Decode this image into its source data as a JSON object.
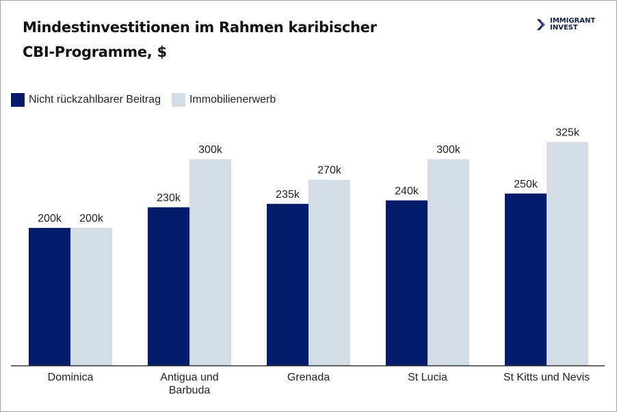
{
  "title_lines": [
    "Mindestinvestitionen im Rahmen karibischer",
    "CBI-Programme, $"
  ],
  "logo": {
    "line1": "IMMIGRANT",
    "line2": "INVEST",
    "icon": "chevron-double-right-icon"
  },
  "colors": {
    "series1": "#031b6b",
    "series2": "#d3dde5",
    "axis": "#333333"
  },
  "chart_data": {
    "type": "bar",
    "title": "Mindestinvestitionen im Rahmen karibischer CBI-Programme, $",
    "xlabel": "",
    "ylabel": "",
    "categories": [
      "Dominica",
      "Antigua und Barbuda",
      "Grenada",
      "St Lucia",
      "St Kitts und Nevis"
    ],
    "category_label_lines": [
      [
        "Dominica"
      ],
      [
        "Antigua und",
        "Barbuda"
      ],
      [
        "Grenada"
      ],
      [
        "St Lucia"
      ],
      [
        "St Kitts und Nevis"
      ]
    ],
    "series": [
      {
        "name": "Nicht rückzahlbarer Beitrag",
        "values": [
          200000,
          230000,
          235000,
          240000,
          250000
        ],
        "labels": [
          "200k",
          "230k",
          "235k",
          "240k",
          "250k"
        ]
      },
      {
        "name": "Immobilienerwerb",
        "values": [
          200000,
          300000,
          270000,
          300000,
          325000
        ],
        "labels": [
          "200k",
          "300k",
          "270k",
          "300k",
          "325k"
        ]
      }
    ],
    "ylim": [
      0,
      350000
    ],
    "grid": false,
    "y_axis_visible": false,
    "legend_position": "top-left"
  }
}
